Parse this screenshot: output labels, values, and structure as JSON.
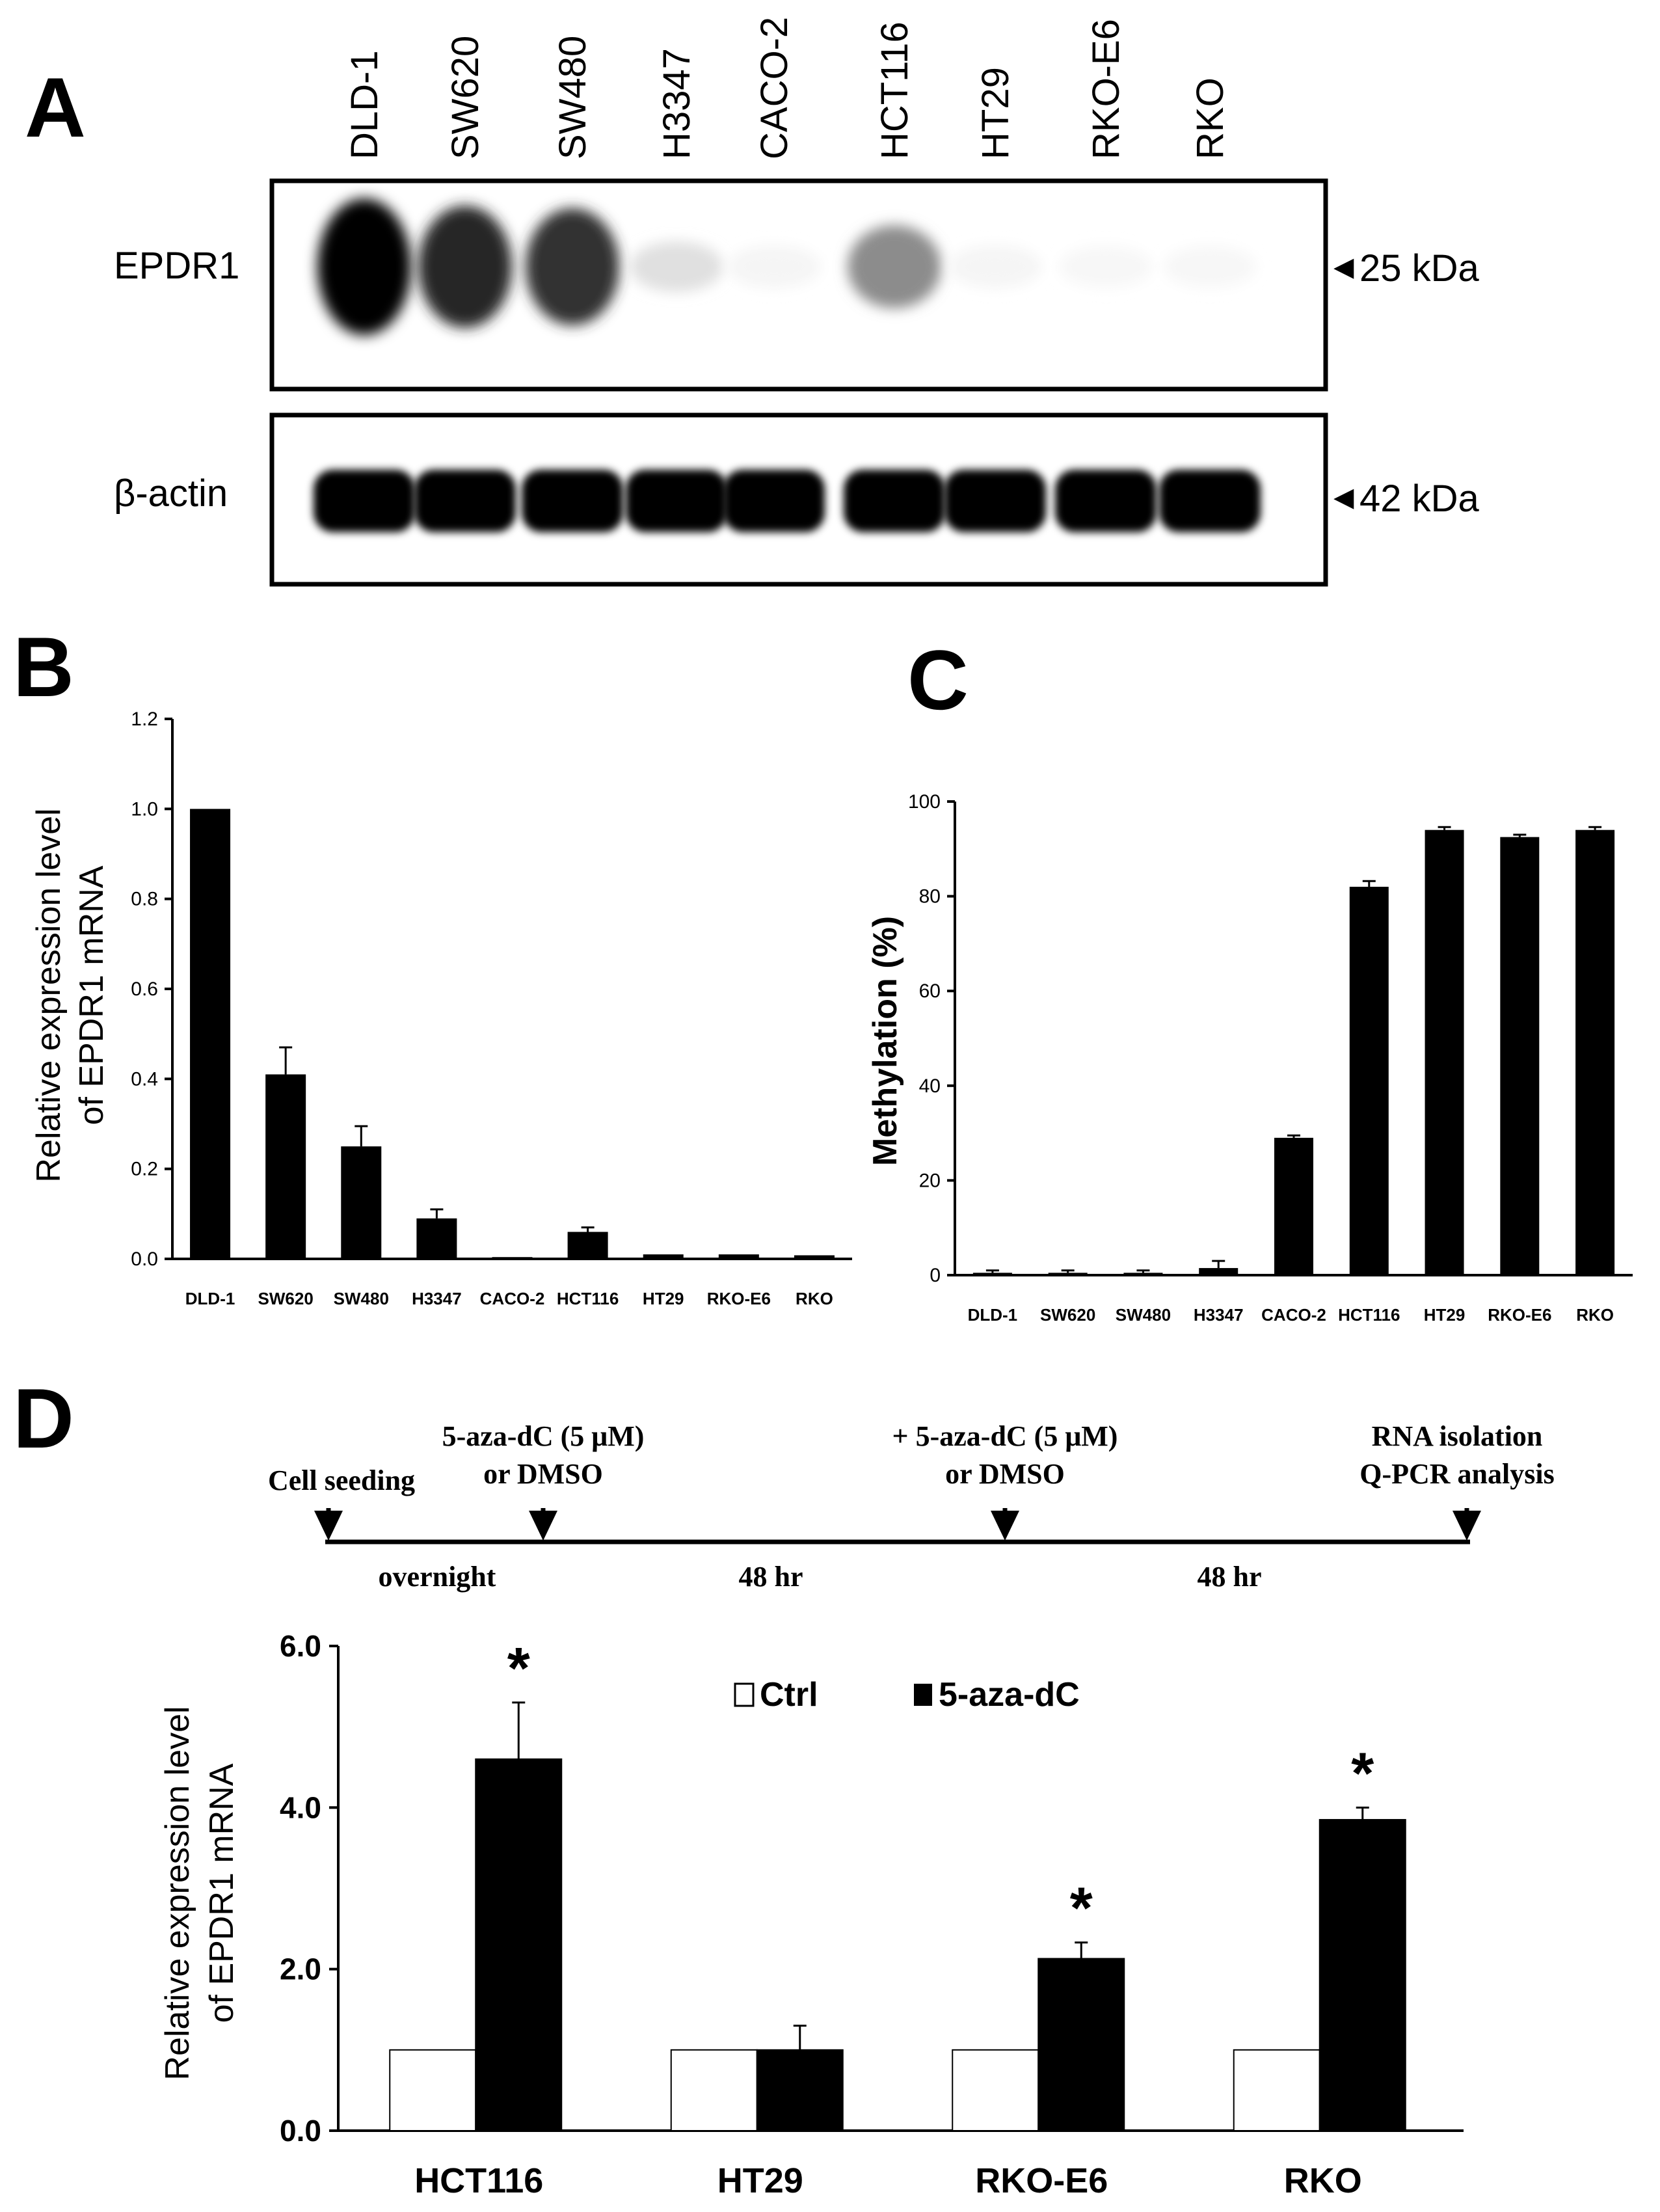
{
  "panels": {
    "a": "A",
    "b": "B",
    "c": "C",
    "d": "D"
  },
  "blot": {
    "lanes": [
      "DLD-1",
      "SW620",
      "SW480",
      "H3347",
      "CACO-2",
      "HCT116",
      "HT29",
      "RKO-E6",
      "RKO"
    ],
    "epdr1": {
      "label": "EPDR1",
      "marker": "25 kDa",
      "band_intensity": [
        1.0,
        0.85,
        0.8,
        0.12,
        0.04,
        0.45,
        0.04,
        0.03,
        0.03
      ]
    },
    "actin": {
      "label": "β-actin",
      "marker": "42 kDa",
      "band_intensity": [
        1,
        1,
        1,
        1,
        1,
        1,
        1,
        1,
        1
      ]
    },
    "arrow_glyph": "◄"
  },
  "chart_data": [
    {
      "id": "B",
      "type": "bar",
      "categories": [
        "DLD-1",
        "SW620",
        "SW480",
        "H3347",
        "CACO-2",
        "HCT116",
        "HT29",
        "RKO-E6",
        "RKO"
      ],
      "values": [
        1.0,
        0.41,
        0.25,
        0.09,
        0.004,
        0.06,
        0.01,
        0.01,
        0.008
      ],
      "errors": [
        0.0,
        0.06,
        0.045,
        0.02,
        0.0,
        0.01,
        0.0,
        0.0,
        0.0
      ],
      "ylabel": "Relative expression level of EPDR1 mRNA",
      "ylabel_lines": [
        "Relative expression level",
        "of EPDR1 mRNA"
      ],
      "ylim": [
        0,
        1.2
      ],
      "yticks": [
        "0.0",
        "0.2",
        "0.4",
        "0.6",
        "0.8",
        "1.0",
        "1.2"
      ],
      "color": "#000000"
    },
    {
      "id": "C",
      "type": "bar",
      "categories": [
        "DLD-1",
        "SW620",
        "SW480",
        "H3347",
        "CACO-2",
        "HCT116",
        "HT29",
        "RKO-E6",
        "RKO"
      ],
      "values": [
        0.5,
        0.5,
        0.5,
        1.5,
        29,
        82,
        94,
        92.5,
        94
      ],
      "errors": [
        0.5,
        0.5,
        0.5,
        1.5,
        0.5,
        1.2,
        0.6,
        0.5,
        0.6
      ],
      "ylabel": "Methylation (%)",
      "ylim": [
        0,
        100
      ],
      "yticks": [
        "0",
        "20",
        "40",
        "60",
        "80",
        "100"
      ],
      "color": "#000000"
    },
    {
      "id": "D",
      "type": "bar",
      "categories": [
        "HCT116",
        "HT29",
        "RKO-E6",
        "RKO"
      ],
      "series": [
        {
          "name": "Ctrl",
          "values": [
            1.0,
            1.0,
            1.0,
            1.0
          ],
          "errors": [
            0,
            0,
            0,
            0
          ],
          "color": "#ffffff"
        },
        {
          "name": "5-aza-dC",
          "values": [
            4.6,
            1.0,
            2.13,
            3.85
          ],
          "errors": [
            0.7,
            0.3,
            0.2,
            0.15
          ],
          "color": "#000000"
        }
      ],
      "significance": [
        true,
        false,
        true,
        true
      ],
      "significance_mark": "*",
      "ylabel": "Relative expression level of EPDR1 mRNA",
      "ylabel_lines": [
        "Relative expression level",
        "of EPDR1 mRNA"
      ],
      "ylim": [
        0,
        6.0
      ],
      "yticks": [
        "0.0",
        "2.0",
        "4.0",
        "6.0"
      ]
    }
  ],
  "timeline": {
    "events": [
      {
        "lines": [
          "Cell seeding"
        ]
      },
      {
        "lines": [
          "5-aza-dC (5 μM)",
          "or DMSO"
        ]
      },
      {
        "lines": [
          "+ 5-aza-dC (5 μM)",
          "or DMSO"
        ]
      },
      {
        "lines": [
          "RNA isolation",
          "Q-PCR analysis"
        ]
      }
    ],
    "intervals": [
      "overnight",
      "48 hr",
      "48 hr"
    ]
  },
  "colors": {
    "ink": "#000000",
    "background": "#ffffff"
  }
}
